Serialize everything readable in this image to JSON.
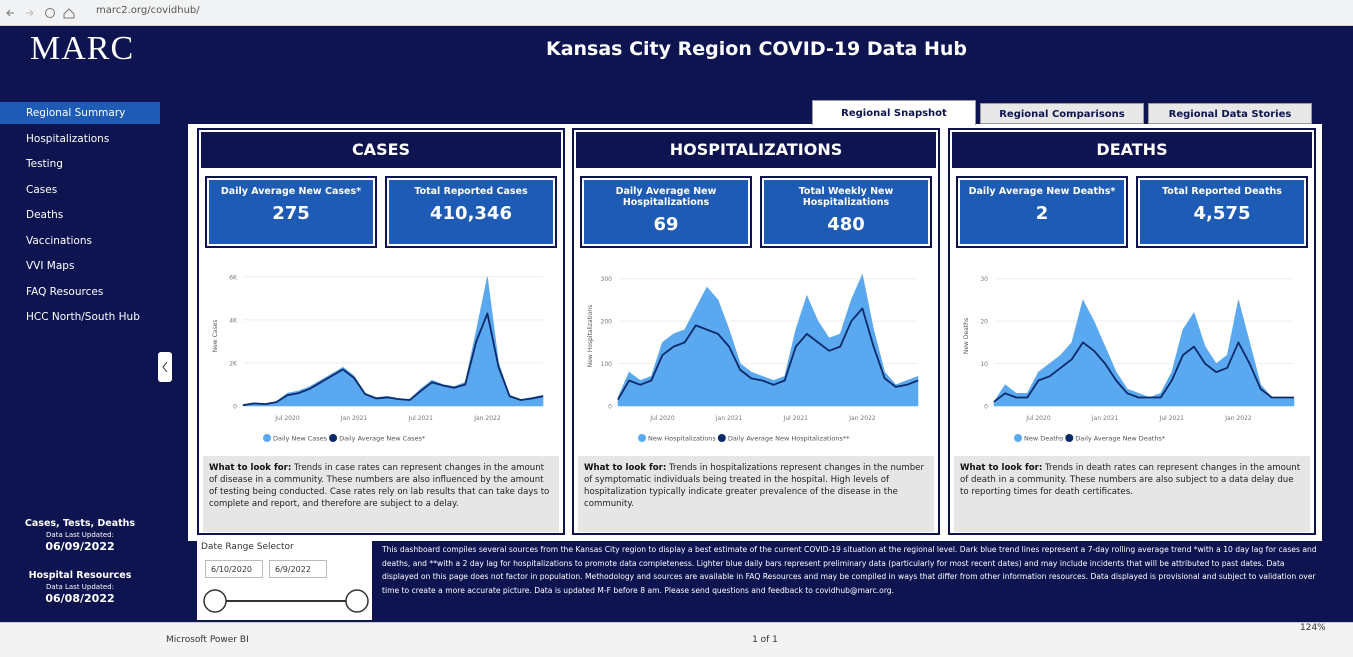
{
  "browser": {
    "url": "marc2.org/covidhub/"
  },
  "logo": "MARC",
  "header": {
    "title": "Kansas City Region COVID-19 Data Hub"
  },
  "nav": [
    "Regional Summary",
    "Hospitalizations",
    "Testing",
    "Cases",
    "Deaths",
    "Vaccinations",
    "VVI Maps",
    "FAQ Resources",
    "HCC North/South Hub"
  ],
  "updates": [
    {
      "label": "Cases, Tests, Deaths",
      "sub": "Data Last Updated:",
      "date": "06/09/2022"
    },
    {
      "label": "Hospital Resources",
      "sub": "Data Last Updated:",
      "date": "06/08/2022"
    }
  ],
  "tabs": [
    "Regional Snapshot",
    "Regional Comparisons",
    "Regional Data Stories"
  ],
  "panels": [
    {
      "title": "CASES",
      "kpis": [
        {
          "label": "Daily Average New Cases*",
          "value": "275"
        },
        {
          "label": "Total Reported Cases",
          "value": "410,346"
        }
      ],
      "chart_data": {
        "type": "area_line",
        "y_label": "New Cases",
        "categories": [
          null,
          null,
          null,
          null,
          "Jul 2020",
          null,
          null,
          null,
          null,
          null,
          "Jan 2021",
          null,
          null,
          null,
          null,
          null,
          "Jul 2021",
          null,
          null,
          null,
          null,
          null,
          "Jan 2022",
          null,
          null,
          null,
          null,
          null
        ],
        "series": [
          {
            "name": "Daily New Cases",
            "color": "#5aa9f0",
            "values": [
              50,
              150,
              100,
              200,
              600,
              700,
              900,
              1200,
              1500,
              1800,
              1400,
              600,
              400,
              450,
              350,
              300,
              800,
              1200,
              1000,
              900,
              1100,
              3500,
              6000,
              2000,
              500,
              300,
              400,
              500
            ]
          },
          {
            "name": "Daily Average New Cases*",
            "color": "#0c2a6a",
            "values": [
              40,
              120,
              90,
              180,
              500,
              600,
              800,
              1100,
              1400,
              1700,
              1300,
              550,
              350,
              400,
              320,
              280,
              700,
              1100,
              950,
              850,
              1000,
              3000,
              4300,
              1800,
              450,
              280,
              350,
              450
            ]
          }
        ],
        "ylim": [
          0,
          6500
        ],
        "yticks": [
          0,
          {
            "value": 2000,
            "label": "2K"
          },
          {
            "value": 4000,
            "label": "4K"
          },
          {
            "value": 6000,
            "label": "6K"
          }
        ]
      },
      "note_lead": "What to look for:",
      "note": "Trends in case rates can represent changes in the amount of disease in a community. These numbers are also influenced by the amount of testing being conducted. Case rates rely on lab results that can take days to complete and report, and therefore are subject to a delay."
    },
    {
      "title": "HOSPITALIZATIONS",
      "kpis": [
        {
          "label": "Daily Average New Hospitalizations",
          "value": "69"
        },
        {
          "label": "Total Weekly New Hospitalizations",
          "value": "480"
        }
      ],
      "chart_data": {
        "type": "area_line",
        "y_label": "New Hospitalizations",
        "categories": [
          null,
          null,
          null,
          null,
          "Jul 2020",
          null,
          null,
          null,
          null,
          null,
          "Jan 2021",
          null,
          null,
          null,
          null,
          null,
          "Jul 2021",
          null,
          null,
          null,
          null,
          null,
          "Jan 2022",
          null,
          null,
          null,
          null,
          null
        ],
        "series": [
          {
            "name": "New Hospitalizations",
            "color": "#5aa9f0",
            "values": [
              20,
              80,
              60,
              70,
              150,
              170,
              180,
              230,
              280,
              250,
              180,
              100,
              80,
              70,
              60,
              70,
              180,
              260,
              200,
              160,
              170,
              250,
              310,
              180,
              80,
              50,
              60,
              70
            ]
          },
          {
            "name": "Daily Average New Hospitalizations**",
            "color": "#0c2a6a",
            "values": [
              15,
              60,
              50,
              60,
              120,
              140,
              150,
              190,
              180,
              170,
              140,
              85,
              65,
              60,
              50,
              60,
              140,
              170,
              150,
              130,
              140,
              200,
              230,
              140,
              65,
              45,
              50,
              60
            ]
          }
        ],
        "ylim": [
          0,
          330
        ],
        "yticks": [
          0,
          100,
          200,
          300
        ]
      },
      "note_lead": "What to look for:",
      "note": "Trends in hospitalizations represent changes in the number of symptomatic individuals being treated in the hospital. High levels of hospitalization typically indicate greater prevalence of the disease in the community."
    },
    {
      "title": "DEATHS",
      "kpis": [
        {
          "label": "Daily Average New Deaths*",
          "value": "2"
        },
        {
          "label": "Total Reported Deaths",
          "value": "4,575"
        }
      ],
      "chart_data": {
        "type": "area_line",
        "y_label": "New Deaths",
        "categories": [
          null,
          null,
          null,
          null,
          "Jul 2020",
          null,
          null,
          null,
          null,
          null,
          "Jan 2021",
          null,
          null,
          null,
          null,
          null,
          "Jul 2021",
          null,
          null,
          null,
          null,
          null,
          "Jan 2022",
          null,
          null,
          null,
          null,
          null
        ],
        "series": [
          {
            "name": "New Deaths",
            "color": "#5aa9f0",
            "values": [
              1,
              5,
              3,
              3,
              8,
              10,
              12,
              15,
              25,
              20,
              14,
              8,
              4,
              3,
              2,
              3,
              8,
              18,
              22,
              14,
              10,
              12,
              25,
              15,
              5,
              2,
              2,
              2
            ]
          },
          {
            "name": "Daily Average New Deaths*",
            "color": "#0c2a6a",
            "values": [
              1,
              3,
              2,
              2,
              6,
              7,
              9,
              11,
              15,
              13,
              10,
              6,
              3,
              2,
              2,
              2,
              6,
              12,
              14,
              10,
              8,
              9,
              15,
              10,
              4,
              2,
              2,
              2
            ]
          }
        ],
        "ylim": [
          0,
          33
        ],
        "yticks": [
          0,
          10,
          20,
          30
        ]
      },
      "note_lead": "What to look for:",
      "note": "Trends in death rates can represent changes in the amount of death in a community. These numbers are also subject to a data delay due to reporting times for death certificates."
    }
  ],
  "date_range": {
    "label": "Date Range Selector",
    "start": "6/10/2020",
    "end": "6/9/2022"
  },
  "description": "This dashboard compiles several sources from the Kansas City region to display a best estimate of the current COVID-19 situation at the regional level. Dark blue trend lines represent a 7-day rolling average trend *with a 10 day lag for cases and deaths, and **with a 2 day lag for hospitalizations to promote data completeness. Lighter blue daily bars represent preliminary data (particularly for most recent dates) and may include incidents that will be attributed to past dates. Data displayed on this page does not factor in population. Methodology and sources are available in FAQ Resources and may be compiled in ways that differ from other information resources. Data displayed is provisional and subject to validation over time to create a more accurate picture. Data is updated M-F before 8 am. Please send questions and feedback to covidhub@marc.org.",
  "footer": {
    "left": "Microsoft Power BI",
    "pages": "1 of 1",
    "zoom": "124%"
  }
}
